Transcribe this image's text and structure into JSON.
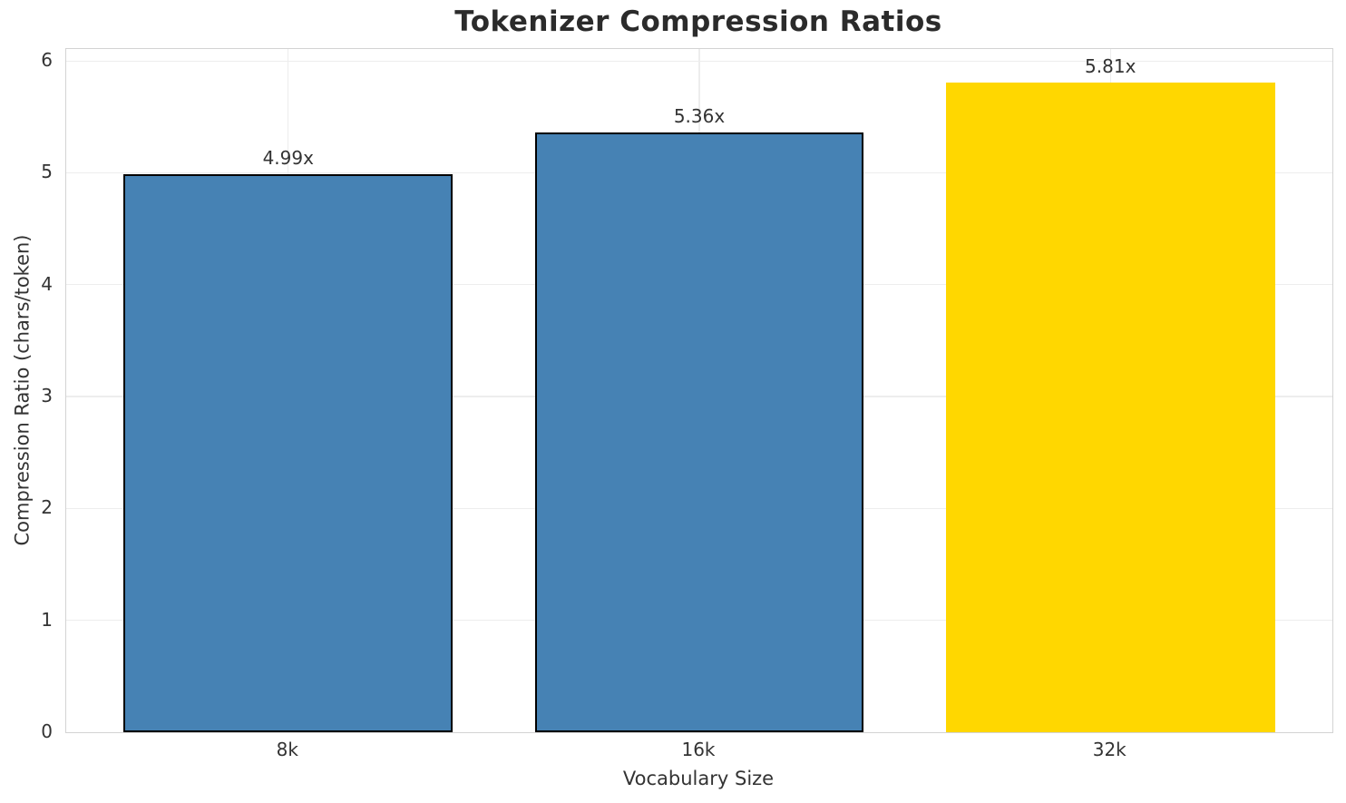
{
  "chart_data": {
    "type": "bar",
    "title": "Tokenizer Compression Ratios",
    "xlabel": "Vocabulary Size",
    "ylabel": "Compression Ratio (chars/token)",
    "categories": [
      "8k",
      "16k",
      "32k"
    ],
    "values": [
      4.99,
      5.36,
      5.81
    ],
    "bar_labels": [
      "4.99x",
      "5.36x",
      "5.81x"
    ],
    "bar_colors": [
      "#4682B4",
      "#4682B4",
      "#FFD700"
    ],
    "bar_edge_colors": [
      "#000000",
      "#000000",
      "none"
    ],
    "yticks": [
      0,
      1,
      2,
      3,
      4,
      5,
      6
    ],
    "ylim": [
      0,
      6.107
    ],
    "bar_width_fraction": 0.8,
    "grid": true,
    "legend": null,
    "colors": {
      "grid": "#ededed",
      "spine": "#d3d3d3",
      "text": "#333333",
      "title": "#2b2b2b",
      "background": "#ffffff"
    }
  }
}
